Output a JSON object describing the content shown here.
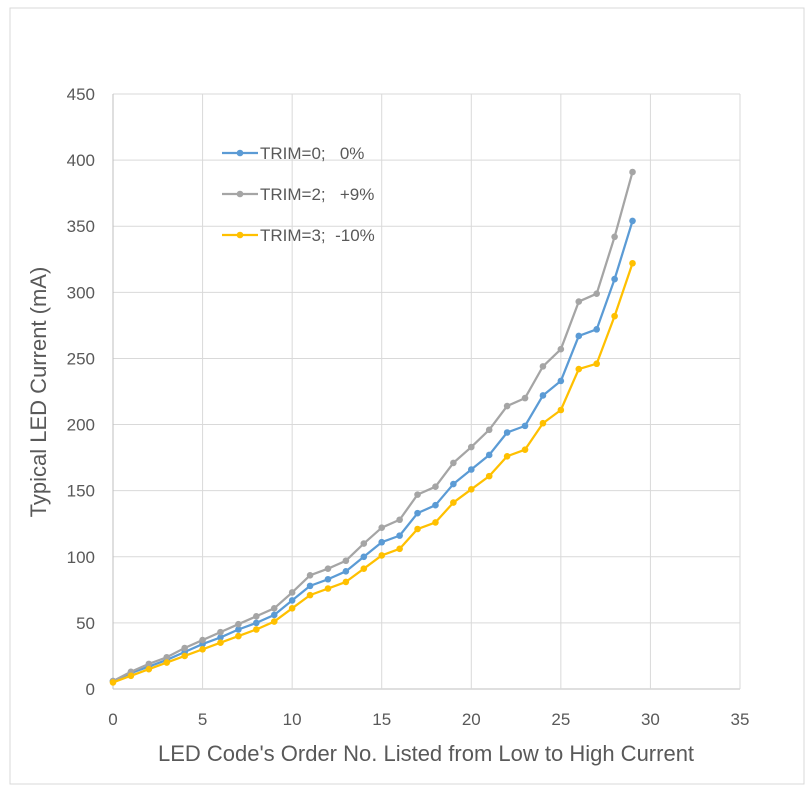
{
  "chart_data": {
    "type": "line",
    "title": "",
    "xlabel": "LED Code's Order No. Listed from Low to High Current",
    "ylabel": "Typical LED Current (mA)",
    "xlim": [
      0,
      35
    ],
    "ylim": [
      0,
      450
    ],
    "x_ticks": [
      0,
      5,
      10,
      15,
      20,
      25,
      30,
      35
    ],
    "y_ticks": [
      0,
      50,
      100,
      150,
      200,
      250,
      300,
      350,
      400,
      450
    ],
    "grid": true,
    "legend_position": "top-left",
    "x": [
      0,
      1,
      2,
      3,
      4,
      5,
      6,
      7,
      8,
      9,
      10,
      11,
      12,
      13,
      14,
      15,
      16,
      17,
      18,
      19,
      20,
      21,
      22,
      23,
      24,
      25,
      26,
      27,
      28,
      29
    ],
    "series": [
      {
        "name": "TRIM=0;   0%",
        "color": "#5B9BD5",
        "values": [
          6,
          12,
          17,
          22,
          28,
          34,
          39,
          45,
          50,
          56,
          67,
          78,
          83,
          89,
          100,
          111,
          116,
          133,
          139,
          155,
          166,
          177,
          194,
          199,
          222,
          233,
          267,
          272,
          310,
          354
        ]
      },
      {
        "name": "TRIM=2;   +9%",
        "color": "#A5A5A5",
        "values": [
          6,
          13,
          19,
          24,
          31,
          37,
          43,
          49,
          55,
          61,
          73,
          86,
          91,
          97,
          110,
          122,
          128,
          147,
          153,
          171,
          183,
          196,
          214,
          220,
          244,
          257,
          293,
          299,
          342,
          391
        ]
      },
      {
        "name": "TRIM=3;  -10%",
        "color": "#FFC000",
        "values": [
          5,
          10,
          15,
          20,
          25,
          30,
          35,
          40,
          45,
          51,
          61,
          71,
          76,
          81,
          91,
          101,
          106,
          121,
          126,
          141,
          151,
          161,
          176,
          181,
          201,
          211,
          242,
          246,
          282,
          322
        ]
      }
    ]
  }
}
